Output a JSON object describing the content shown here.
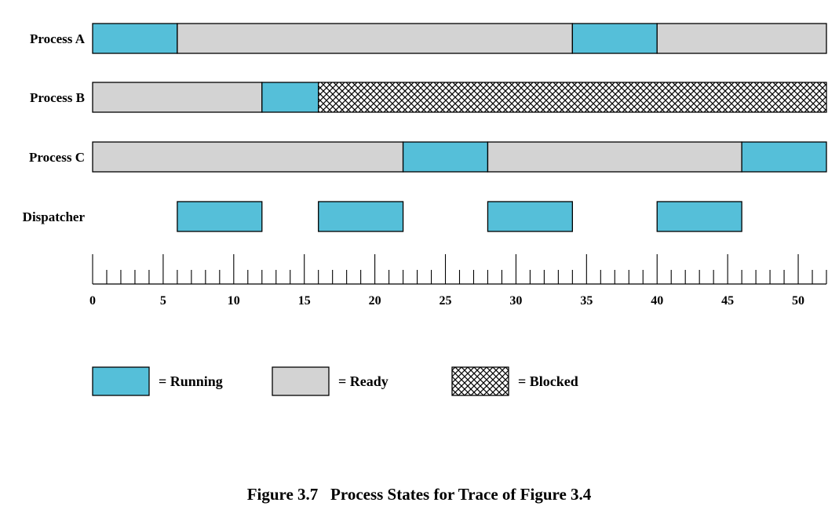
{
  "title": "Figure 3.7   Process States for Trace of Figure 3.4",
  "colors": {
    "running": "#55bfd9",
    "ready": "#d3d3d3",
    "blocked_bg": "#ffffff",
    "blocked_pattern": "#000000",
    "outline": "#000000"
  },
  "chart_data": {
    "type": "gantt",
    "xlim": [
      0,
      52
    ],
    "major_ticks": [
      0,
      5,
      10,
      15,
      20,
      25,
      30,
      35,
      40,
      45,
      50
    ],
    "minor_tick_step": 1,
    "rows": [
      {
        "label": "Process A",
        "segments": [
          {
            "start": 0,
            "end": 6,
            "state": "running"
          },
          {
            "start": 6,
            "end": 34,
            "state": "ready"
          },
          {
            "start": 34,
            "end": 40,
            "state": "running"
          },
          {
            "start": 40,
            "end": 52,
            "state": "ready"
          }
        ]
      },
      {
        "label": "Process B",
        "segments": [
          {
            "start": 0,
            "end": 12,
            "state": "ready"
          },
          {
            "start": 12,
            "end": 16,
            "state": "running"
          },
          {
            "start": 16,
            "end": 52,
            "state": "blocked"
          }
        ]
      },
      {
        "label": "Process C",
        "segments": [
          {
            "start": 0,
            "end": 22,
            "state": "ready"
          },
          {
            "start": 22,
            "end": 28,
            "state": "running"
          },
          {
            "start": 28,
            "end": 46,
            "state": "ready"
          },
          {
            "start": 46,
            "end": 52,
            "state": "running"
          }
        ]
      },
      {
        "label": "Dispatcher",
        "segments": [
          {
            "start": 6,
            "end": 12,
            "state": "running"
          },
          {
            "start": 16,
            "end": 22,
            "state": "running"
          },
          {
            "start": 28,
            "end": 34,
            "state": "running"
          },
          {
            "start": 40,
            "end": 46,
            "state": "running"
          }
        ]
      }
    ],
    "legend": [
      {
        "state": "running",
        "label": "= Running"
      },
      {
        "state": "ready",
        "label": "= Ready"
      },
      {
        "state": "blocked",
        "label": "= Blocked"
      }
    ]
  }
}
